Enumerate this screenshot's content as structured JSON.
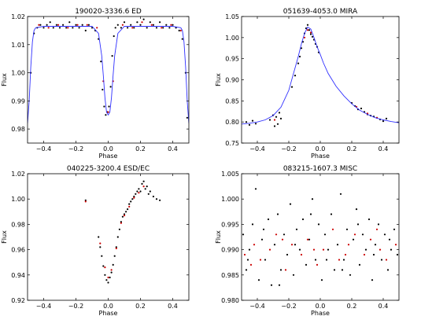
{
  "chart_data": [
    {
      "type": "scatter",
      "title": "190020-3336.6  ED",
      "xlabel": "Phase",
      "ylabel": "Flux",
      "xlim": [
        -0.5,
        0.5
      ],
      "ylim": [
        0.975,
        1.02
      ],
      "xticks": [
        -0.4,
        -0.2,
        0.0,
        0.2,
        0.4
      ],
      "xtick_labels": [
        "−0.4",
        "−0.2",
        "0.0",
        "0.2",
        "0.4"
      ],
      "yticks": [
        0.98,
        0.99,
        1.0,
        1.01,
        1.02
      ],
      "ytick_labels": [
        "0.98",
        "0.99",
        "1.00",
        "1.01",
        "1.02"
      ],
      "grid": false,
      "series": [
        {
          "kind": "points",
          "color": "#000000",
          "x": [
            -0.48,
            -0.46,
            -0.44,
            -0.42,
            -0.4,
            -0.38,
            -0.36,
            -0.34,
            -0.32,
            -0.3,
            -0.28,
            -0.26,
            -0.24,
            -0.22,
            -0.2,
            -0.18,
            -0.16,
            -0.14,
            -0.12,
            -0.1,
            -0.08,
            -0.06,
            -0.045,
            -0.035,
            -0.025,
            -0.015,
            -0.005,
            0.005,
            0.015,
            0.025,
            0.035,
            0.045,
            0.06,
            0.08,
            0.1,
            0.12,
            0.14,
            0.16,
            0.18,
            0.2,
            0.22,
            0.24,
            0.26,
            0.28,
            0.3,
            0.32,
            0.34,
            0.36,
            0.38,
            0.4,
            0.42,
            0.44,
            0.46,
            0.48,
            0.49
          ],
          "y": [
            1.0,
            1.014,
            1.016,
            1.017,
            1.016,
            1.017,
            1.018,
            1.016,
            1.017,
            1.016,
            1.017,
            1.016,
            1.018,
            1.016,
            1.017,
            1.016,
            1.017,
            1.015,
            1.017,
            1.016,
            1.015,
            1.012,
            1.004,
            0.994,
            0.988,
            0.985,
            0.986,
            0.988,
            0.995,
            1.006,
            1.013,
            1.016,
            1.017,
            1.016,
            1.018,
            1.016,
            1.017,
            1.016,
            1.018,
            1.017,
            1.019,
            1.016,
            1.018,
            1.017,
            1.016,
            1.018,
            1.016,
            1.017,
            1.016,
            1.017,
            1.016,
            1.015,
            1.012,
            1.0,
            0.984
          ]
        },
        {
          "kind": "points",
          "color": "#cc0000",
          "x": [
            -0.43,
            -0.37,
            -0.31,
            -0.25,
            -0.19,
            -0.13,
            -0.07,
            -0.03,
            0.0,
            0.03,
            0.09,
            0.15,
            0.21,
            0.27,
            0.33,
            0.39,
            0.45
          ],
          "y": [
            1.017,
            1.016,
            1.017,
            1.016,
            1.017,
            1.017,
            1.016,
            0.997,
            0.986,
            0.997,
            1.017,
            1.016,
            1.018,
            1.017,
            1.016,
            1.017,
            1.015
          ]
        },
        {
          "kind": "line",
          "color": "#3030ff",
          "x": [
            -0.5,
            -0.49,
            -0.48,
            -0.47,
            -0.46,
            -0.45,
            -0.4,
            -0.3,
            -0.2,
            -0.1,
            -0.06,
            -0.04,
            -0.03,
            -0.02,
            -0.01,
            0.0,
            0.01,
            0.02,
            0.03,
            0.04,
            0.06,
            0.1,
            0.2,
            0.3,
            0.4,
            0.45,
            0.46,
            0.47,
            0.48,
            0.49,
            0.5
          ],
          "y": [
            0.982,
            0.99,
            1.002,
            1.011,
            1.015,
            1.016,
            1.0165,
            1.0165,
            1.0165,
            1.0165,
            1.014,
            1.006,
            0.999,
            0.991,
            0.986,
            0.985,
            0.986,
            0.991,
            0.999,
            1.006,
            1.014,
            1.0165,
            1.0165,
            1.0165,
            1.0165,
            1.016,
            1.015,
            1.011,
            1.002,
            0.99,
            0.982
          ]
        }
      ]
    },
    {
      "type": "scatter",
      "title": "051639-4053.0  MIRA",
      "xlabel": "Phase",
      "ylabel": "Flux",
      "xlim": [
        -0.5,
        0.5
      ],
      "ylim": [
        0.75,
        1.05
      ],
      "xticks": [
        -0.4,
        -0.2,
        0.0,
        0.2,
        0.4
      ],
      "xtick_labels": [
        "−0.4",
        "−0.2",
        "0.0",
        "0.2",
        "0.4"
      ],
      "yticks": [
        0.75,
        0.8,
        0.85,
        0.9,
        0.95,
        1.0,
        1.05
      ],
      "ytick_labels": [
        "0.75",
        "0.80",
        "0.85",
        "0.90",
        "0.95",
        "1.00",
        "1.05"
      ],
      "grid": false,
      "series": [
        {
          "kind": "points",
          "color": "#000000",
          "x": [
            -0.47,
            -0.45,
            -0.43,
            -0.41,
            -0.32,
            -0.3,
            -0.29,
            -0.28,
            -0.27,
            -0.26,
            -0.25,
            -0.18,
            -0.16,
            -0.14,
            -0.13,
            -0.12,
            -0.11,
            -0.1,
            -0.09,
            -0.08,
            -0.07,
            -0.06,
            -0.05,
            -0.04,
            -0.03,
            -0.02,
            -0.01,
            0.2,
            0.22,
            0.24,
            0.26,
            0.28,
            0.3,
            0.32,
            0.34,
            0.36,
            0.38,
            0.4,
            0.42
          ],
          "y": [
            0.8,
            0.793,
            0.803,
            0.796,
            0.805,
            0.816,
            0.79,
            0.812,
            0.795,
            0.822,
            0.808,
            0.883,
            0.91,
            0.939,
            0.955,
            0.975,
            0.99,
            1.01,
            1.022,
            1.03,
            1.018,
            1.008,
            1.002,
            0.995,
            0.985,
            0.978,
            0.965,
            0.845,
            0.838,
            0.83,
            0.832,
            0.824,
            0.818,
            0.815,
            0.813,
            0.81,
            0.806,
            0.802,
            0.808
          ]
        },
        {
          "kind": "points",
          "color": "#cc0000",
          "x": [
            -0.29,
            -0.1,
            -0.08,
            -0.06,
            0.23,
            0.3,
            0.36
          ],
          "y": [
            0.805,
            1.0,
            1.018,
            1.012,
            0.836,
            0.82,
            0.81
          ]
        },
        {
          "kind": "line",
          "color": "#3030ff",
          "x": [
            -0.5,
            -0.45,
            -0.4,
            -0.35,
            -0.3,
            -0.25,
            -0.2,
            -0.17,
            -0.14,
            -0.12,
            -0.1,
            -0.08,
            -0.06,
            -0.04,
            -0.02,
            0.0,
            0.02,
            0.05,
            0.1,
            0.15,
            0.2,
            0.25,
            0.3,
            0.35,
            0.4,
            0.45,
            0.5
          ],
          "y": [
            0.795,
            0.797,
            0.8,
            0.805,
            0.815,
            0.835,
            0.875,
            0.915,
            0.955,
            0.985,
            1.01,
            1.025,
            1.02,
            1.0,
            0.978,
            0.96,
            0.94,
            0.915,
            0.885,
            0.862,
            0.843,
            0.828,
            0.818,
            0.81,
            0.805,
            0.801,
            0.798
          ]
        }
      ]
    },
    {
      "type": "scatter",
      "title": "040225-3200.4  ESD/EC",
      "xlabel": "Phase",
      "ylabel": "Flux",
      "xlim": [
        -0.5,
        0.5
      ],
      "ylim": [
        0.92,
        1.02
      ],
      "xticks": [
        -0.4,
        -0.2,
        0.0,
        0.2,
        0.4
      ],
      "xtick_labels": [
        "−0.4",
        "−0.2",
        "0.0",
        "0.2",
        "0.4"
      ],
      "yticks": [
        0.92,
        0.94,
        0.96,
        0.98,
        1.0,
        1.02
      ],
      "ytick_labels": [
        "0.92",
        "0.94",
        "0.96",
        "0.98",
        "1.00",
        "1.02"
      ],
      "grid": false,
      "series": [
        {
          "kind": "points",
          "color": "#000000",
          "x": [
            -0.14,
            -0.06,
            -0.05,
            -0.04,
            -0.03,
            -0.02,
            -0.01,
            0.0,
            0.01,
            0.02,
            0.03,
            0.04,
            0.05,
            0.06,
            0.07,
            0.08,
            0.09,
            0.1,
            0.11,
            0.12,
            0.13,
            0.14,
            0.15,
            0.16,
            0.17,
            0.18,
            0.19,
            0.2,
            0.21,
            0.22,
            0.23,
            0.24,
            0.25,
            0.26,
            0.28,
            0.3,
            0.32
          ],
          "y": [
            0.999,
            0.97,
            0.962,
            0.955,
            0.947,
            0.94,
            0.936,
            0.934,
            0.938,
            0.942,
            0.948,
            0.955,
            0.962,
            0.97,
            0.976,
            0.982,
            0.986,
            0.988,
            0.99,
            0.992,
            0.996,
            0.998,
            1.0,
            1.002,
            1.004,
            1.006,
            1.008,
            1.006,
            1.012,
            1.014,
            1.008,
            1.01,
            1.004,
            1.006,
            1.002,
            1.0,
            0.999
          ]
        },
        {
          "kind": "points",
          "color": "#cc0000",
          "x": [
            -0.14,
            -0.05,
            -0.02,
            0.0,
            0.02,
            0.05,
            0.08,
            0.1,
            0.13,
            0.16,
            0.19,
            0.22
          ],
          "y": [
            0.998,
            0.965,
            0.946,
            0.938,
            0.944,
            0.961,
            0.981,
            0.987,
            0.994,
            1.001,
            1.005,
            1.01
          ]
        }
      ]
    },
    {
      "type": "scatter",
      "title": "083215-1607.3  MISC",
      "xlabel": "Phase",
      "ylabel": "Flux",
      "xlim": [
        -0.5,
        0.5
      ],
      "ylim": [
        0.98,
        1.005
      ],
      "xticks": [
        -0.4,
        -0.2,
        0.0,
        0.2,
        0.4
      ],
      "xtick_labels": [
        "−0.4",
        "−0.2",
        "0.0",
        "0.2",
        "0.4"
      ],
      "yticks": [
        0.98,
        0.985,
        0.99,
        0.995,
        1.0,
        1.005
      ],
      "ytick_labels": [
        "0.980",
        "0.985",
        "0.990",
        "0.995",
        "1.000",
        "1.005"
      ],
      "grid": false,
      "series": [
        {
          "kind": "points",
          "color": "#000000",
          "x": [
            -0.49,
            -0.47,
            -0.45,
            -0.43,
            -0.41,
            -0.39,
            -0.37,
            -0.35,
            -0.33,
            -0.31,
            -0.29,
            -0.27,
            -0.25,
            -0.23,
            -0.21,
            -0.19,
            -0.17,
            -0.15,
            -0.13,
            -0.11,
            -0.09,
            -0.07,
            -0.05,
            -0.03,
            -0.01,
            0.01,
            0.03,
            0.05,
            0.07,
            0.09,
            0.11,
            0.13,
            0.15,
            0.17,
            0.19,
            0.21,
            0.23,
            0.25,
            0.27,
            0.29,
            0.31,
            0.33,
            0.35,
            0.37,
            0.39,
            0.41,
            0.43,
            0.45,
            0.47,
            0.49,
            -0.46,
            -0.36,
            -0.26,
            -0.16,
            -0.06,
            0.04,
            0.14,
            0.24,
            0.34,
            0.44
          ],
          "y": [
            0.993,
            0.986,
            0.99,
            0.995,
            1.002,
            0.984,
            0.992,
            0.988,
            0.996,
            0.983,
            0.991,
            0.997,
            0.986,
            0.993,
            0.989,
            0.999,
            0.985,
            0.994,
            0.99,
            0.996,
            0.987,
            0.992,
            1.0,
            0.988,
            0.995,
            0.984,
            0.993,
            0.99,
            0.997,
            0.986,
            0.991,
            1.001,
            0.988,
            0.994,
            0.985,
            0.992,
            0.998,
            0.987,
            0.993,
            0.99,
            0.996,
            0.984,
            0.991,
            0.995,
            0.988,
            0.993,
            0.986,
            0.99,
            0.994,
            0.989,
            0.988,
            0.994,
            0.983,
            0.991,
            0.997,
            0.988,
            0.986,
            0.995,
            0.989,
            0.992
          ]
        },
        {
          "kind": "points",
          "color": "#cc0000",
          "x": [
            -0.48,
            -0.42,
            -0.38,
            -0.32,
            -0.28,
            -0.22,
            -0.18,
            -0.12,
            -0.08,
            -0.02,
            0.02,
            0.08,
            0.12,
            0.18,
            0.22,
            0.28,
            0.32,
            0.38,
            0.42,
            0.48,
            -0.44,
            -0.24,
            -0.04,
            0.16,
            0.36
          ],
          "y": [
            0.989,
            0.991,
            0.988,
            0.99,
            0.993,
            0.986,
            0.991,
            0.989,
            0.992,
            0.987,
            0.99,
            0.994,
            0.988,
            0.991,
            0.993,
            0.989,
            0.992,
            0.99,
            0.988,
            0.991,
            0.987,
            0.992,
            0.99,
            0.989,
            0.994
          ]
        }
      ]
    }
  ]
}
